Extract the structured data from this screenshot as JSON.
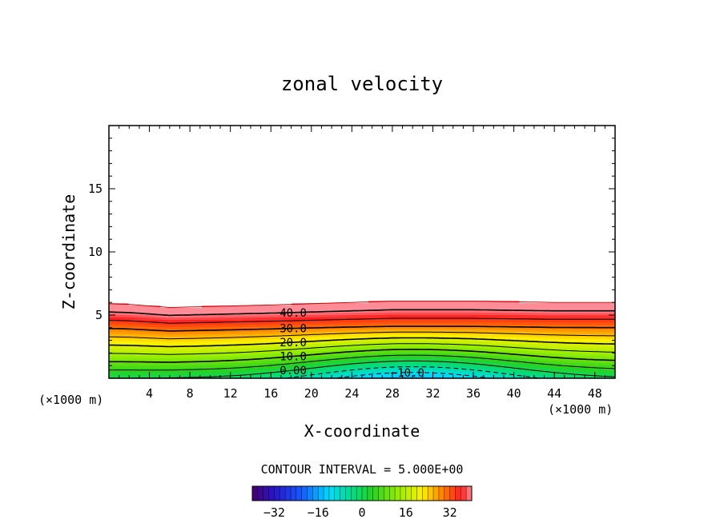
{
  "chart_data": {
    "type": "contour",
    "title": "zonal velocity",
    "xlabel": "X-coordinate",
    "ylabel": "Z-coordinate",
    "xunit_left": "(×1000 m)",
    "xunit_right": "(×1000 m)",
    "xlim": [
      0,
      50
    ],
    "ylim": [
      0,
      20
    ],
    "xticks": [
      4,
      8,
      12,
      16,
      20,
      24,
      28,
      32,
      36,
      40,
      44,
      48
    ],
    "xtick_labels": [
      "4",
      "8",
      "12",
      "16",
      "20",
      "24",
      "28",
      "32",
      "36",
      "40",
      "44",
      "48"
    ],
    "yticks": [
      5,
      10,
      15
    ],
    "ytick_labels": [
      "5",
      "10",
      "15"
    ],
    "contour_interval_text": "CONTOUR INTERVAL = 5.000E+00",
    "colorbar": {
      "range": [
        -40,
        40
      ],
      "ticks": [
        -32,
        -16,
        0,
        16,
        32
      ],
      "tick_labels": [
        "−32",
        "−16",
        "0",
        "16",
        "32"
      ],
      "colormap": "rainbow"
    },
    "contour_labels": [
      {
        "text": "40.0",
        "value": 40
      },
      {
        "text": "30.0",
        "value": 30
      },
      {
        "text": "20.0",
        "value": 20
      },
      {
        "text": "10.0",
        "value": 10
      },
      {
        "text": "0.00",
        "value": 0
      },
      {
        "text": "−10.0",
        "value": -10
      }
    ],
    "field": {
      "description": "u(x,z) ≈ 45*(z/top(x)) - 15*exp(-((x-30)/12)^2)*max(0,1-z/4.2), zero above top(x)",
      "top_height_profile_x": [
        0,
        2,
        6,
        16,
        28,
        36,
        44,
        50
      ],
      "top_height_profile_z": [
        5.9,
        5.85,
        5.6,
        5.8,
        6.1,
        6.1,
        6.0,
        6.0
      ]
    },
    "colors": {
      "accent_red": "#ff3030",
      "accent_cyan": "#00e5ff"
    }
  }
}
